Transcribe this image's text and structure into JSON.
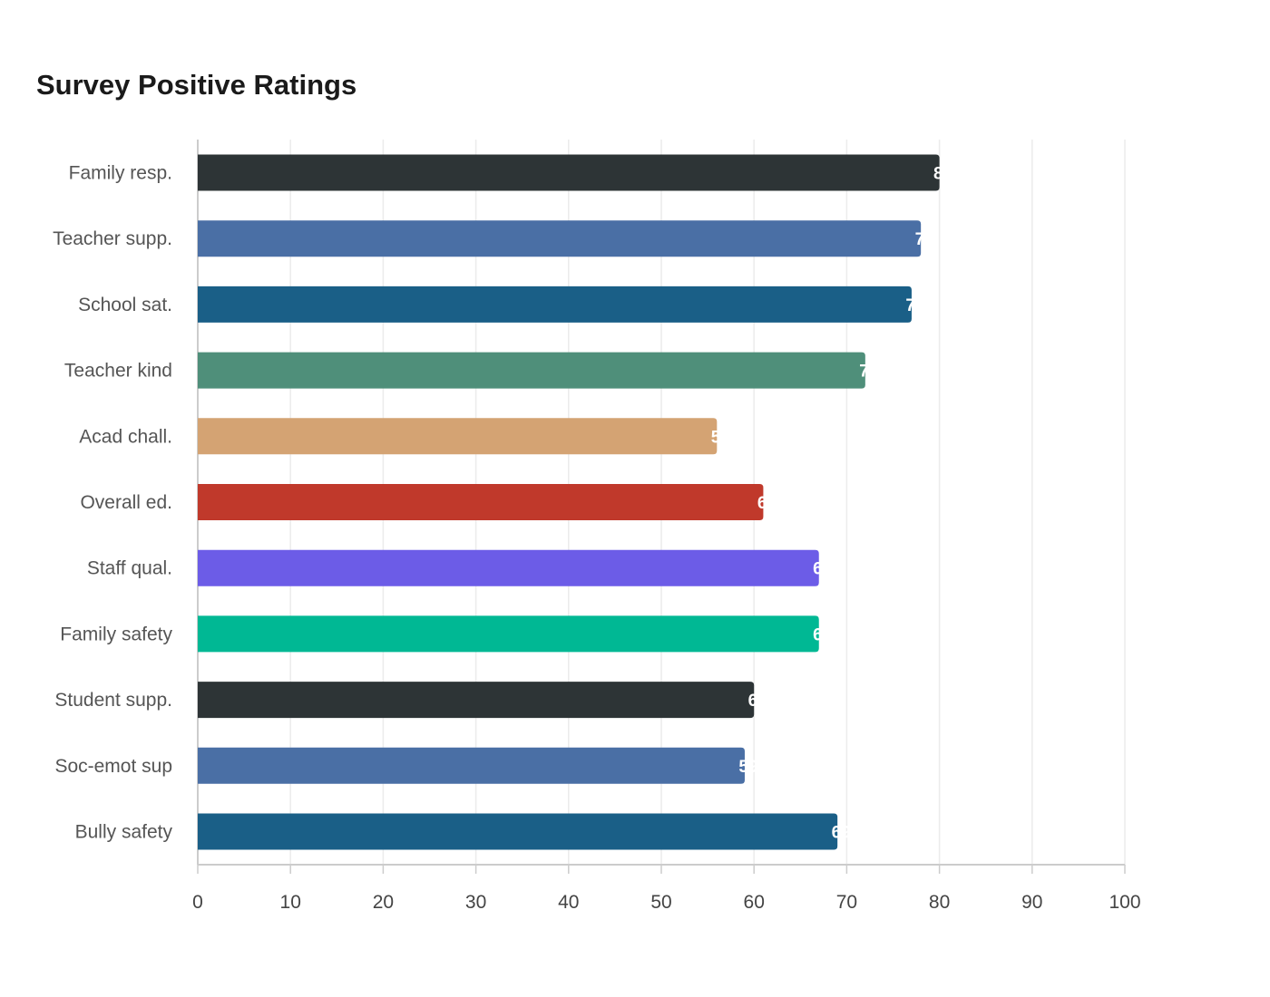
{
  "chart_data": {
    "type": "bar",
    "orientation": "horizontal",
    "title": "Survey Positive Ratings",
    "xlabel": "",
    "ylabel": "",
    "xlim": [
      0,
      100
    ],
    "x_ticks": [
      0,
      10,
      20,
      30,
      40,
      50,
      60,
      70,
      80,
      90,
      100
    ],
    "grid": true,
    "legend": "none",
    "categories": [
      "Family resp.",
      "Teacher supp.",
      "School sat.",
      "Teacher kind",
      "Acad chall.",
      "Overall ed.",
      "Staff qual.",
      "Family safety",
      "Student supp.",
      "Soc-emot sup",
      "Bully safety"
    ],
    "values": [
      80,
      78,
      77,
      72,
      56,
      61,
      67,
      67,
      60,
      59,
      69
    ],
    "colors": [
      "#2d3436",
      "#4a6fa5",
      "#1a5f87",
      "#4f8f7a",
      "#d4a373",
      "#c0392b",
      "#6c5ce7",
      "#00b894",
      "#2d3436",
      "#4a6fa5",
      "#1a5f87"
    ]
  }
}
